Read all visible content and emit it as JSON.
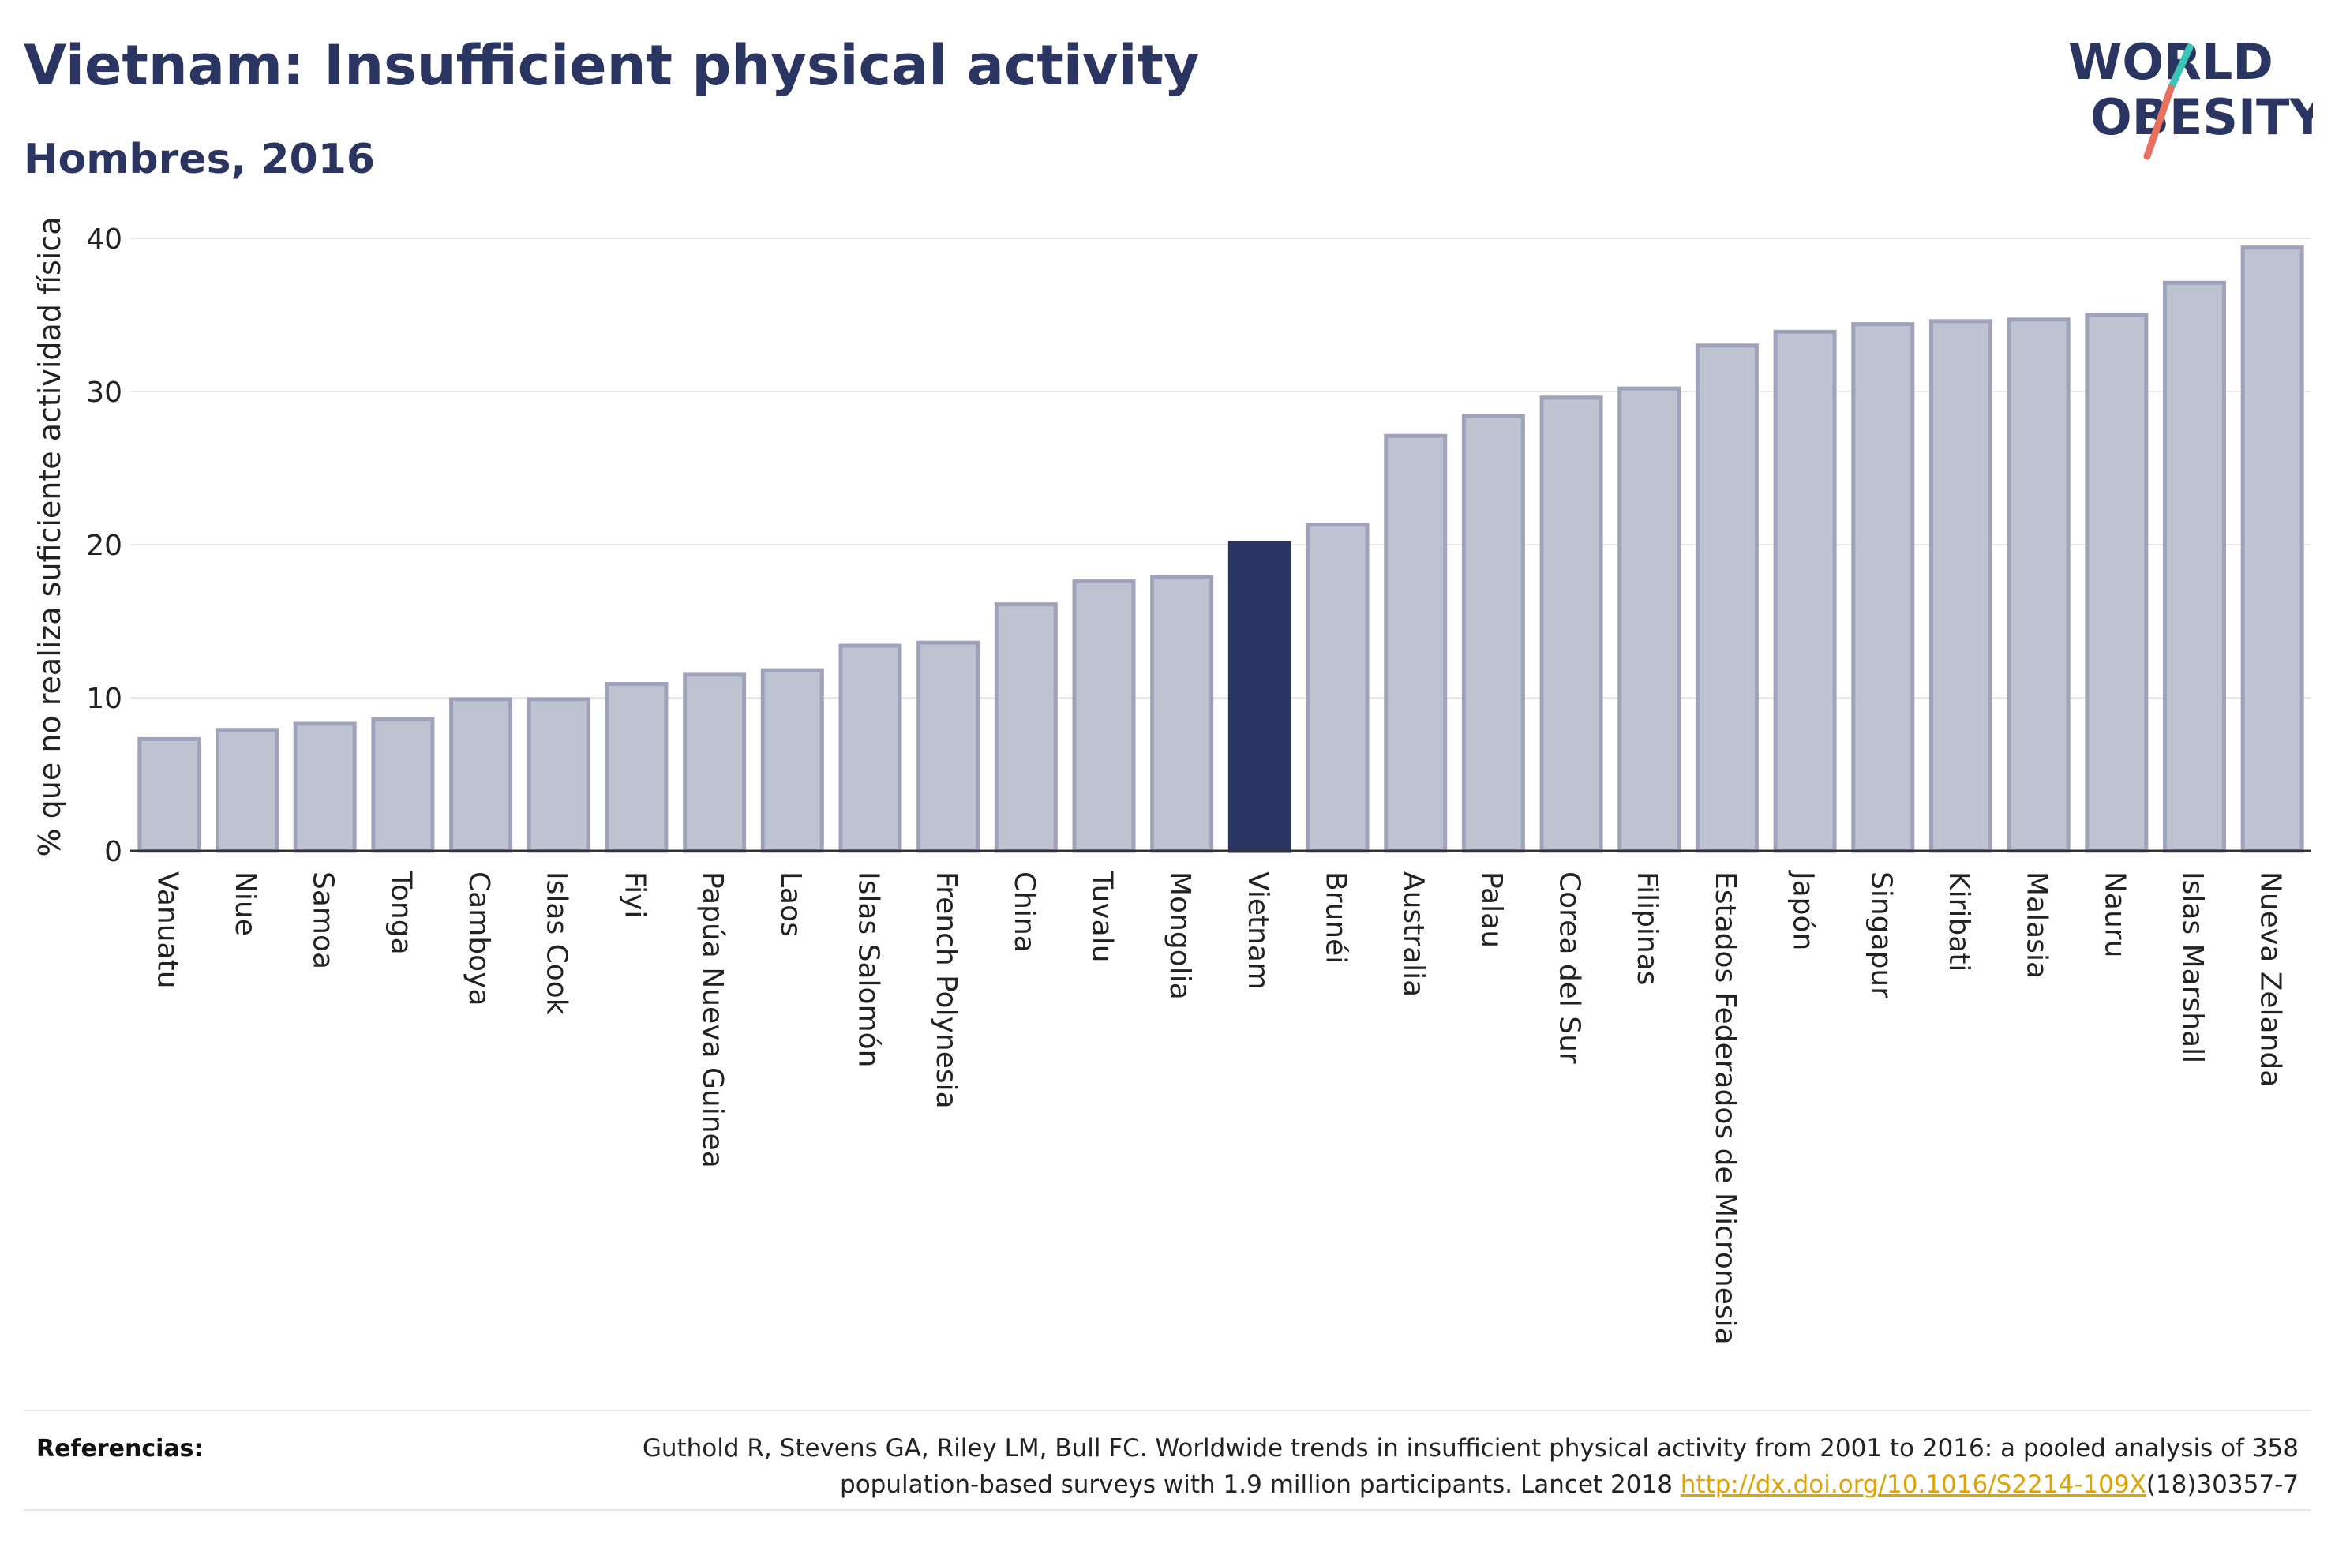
{
  "header": {
    "title": "Vietnam: Insufficient physical activity",
    "subtitle": "Hombres, 2016"
  },
  "logo": {
    "line1": "WORLD",
    "line2": "OBESITY",
    "colors": {
      "text": "#2b3561",
      "slash_teal": "#3cc3b8",
      "slash_red": "#e8705f"
    }
  },
  "chart_data": {
    "type": "bar",
    "categories": [
      "Vanuatu",
      "Niue",
      "Samoa",
      "Tonga",
      "Camboya",
      "Islas Cook",
      "Fiyi",
      "Papúa Nueva Guinea",
      "Laos",
      "Islas Salomón",
      "French Polynesia",
      "China",
      "Tuvalu",
      "Mongolia",
      "Vietnam",
      "Brunéi",
      "Australia",
      "Palau",
      "Corea del Sur",
      "Filipinas",
      "Estados Federados de Micronesia",
      "Japón",
      "Singapur",
      "Kiribati",
      "Malasia",
      "Nauru",
      "Islas Marshall",
      "Nueva Zelanda"
    ],
    "values": [
      7.3,
      7.9,
      8.3,
      8.6,
      9.9,
      9.9,
      10.9,
      11.5,
      11.8,
      13.4,
      13.6,
      16.1,
      17.6,
      17.9,
      20.1,
      21.3,
      27.1,
      28.4,
      29.6,
      30.2,
      33.0,
      33.9,
      34.4,
      34.6,
      34.7,
      35.0,
      37.1,
      39.4
    ],
    "highlight": "Vietnam",
    "ylabel": "% que no realiza suficiente actividad física",
    "ylim": [
      0,
      40
    ],
    "yticks": [
      0,
      10,
      20,
      30,
      40
    ],
    "grid": true,
    "colors": {
      "bar": "#bfc3d1",
      "bar_edge": "#9ea3bb",
      "highlight": "#2b3561"
    }
  },
  "references": {
    "label": "Referencias:",
    "text": "Guthold R, Stevens GA, Riley LM, Bull FC. Worldwide trends in insufficient physical activity from 2001 to 2016: a pooled analysis of 358 population-based surveys with 1.9 million participants. Lancet 2018 ",
    "link": "http://dx.doi.org/10.1016/S2214-109X",
    "suffix": "(18)30357-7"
  }
}
